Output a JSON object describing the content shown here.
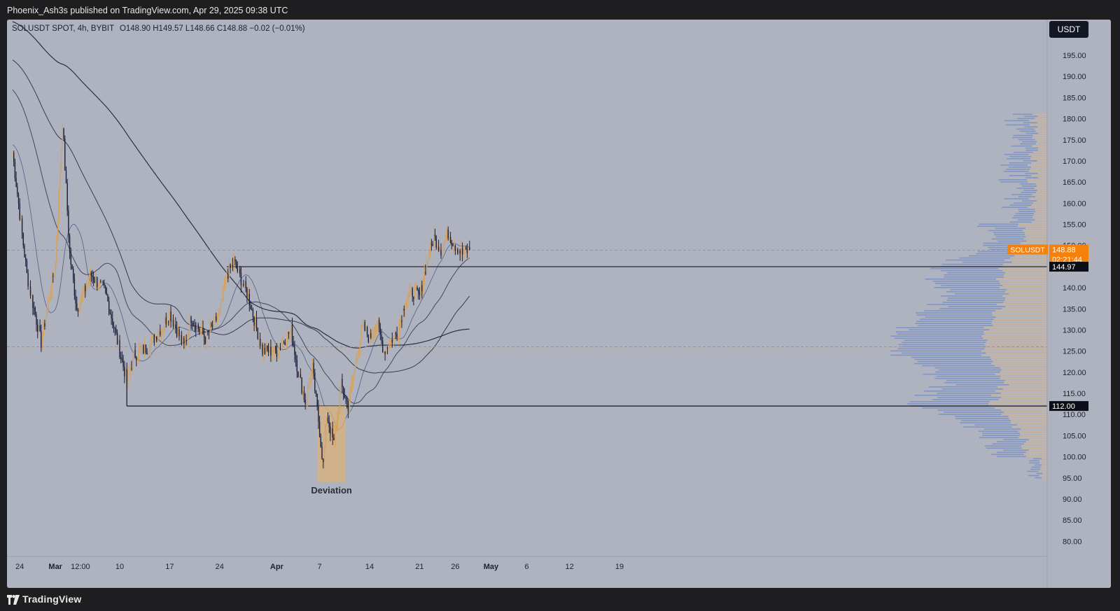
{
  "header": {
    "publisher_text": "Phoenix_Ash3s published on TradingView.com, Apr 29, 2025 09:38 UTC"
  },
  "footer": {
    "brand": "TradingView"
  },
  "legend": {
    "symbol": "SOLUSDT SPOT, 4h, BYBIT",
    "ohlc": "O148.90  H149.57  L148.66  C148.88  −0.02 (−0.01%)"
  },
  "chart_data": {
    "type": "candlestick",
    "symbol": "SOLUSDT",
    "quote_currency": "USDT",
    "y_ticks": [
      195,
      190,
      185,
      180,
      175,
      170,
      165,
      160,
      155,
      150,
      145,
      140,
      135,
      130,
      125,
      120,
      115,
      110,
      105,
      100,
      95,
      90,
      85,
      80
    ],
    "x_ticks": [
      "24",
      "Mar",
      "12:00",
      "10",
      "17",
      "24",
      "Apr",
      "7",
      "14",
      "21",
      "26",
      "May",
      "6",
      "12",
      "19"
    ],
    "last_price": {
      "label": "SOLUSDT",
      "value": "148.88",
      "countdown": "02:21:44"
    },
    "price_labels": [
      "144.97",
      "112.00"
    ],
    "annotation": "Deviation",
    "price_path": [
      {
        "date": "2025-02-23",
        "p": 172
      },
      {
        "date": "2025-02-25",
        "p": 143
      },
      {
        "date": "2025-02-27",
        "p": 127
      },
      {
        "date": "2025-03-01",
        "p": 146
      },
      {
        "date": "2025-03-02",
        "p": 179
      },
      {
        "date": "2025-03-03",
        "p": 148
      },
      {
        "date": "2025-03-04",
        "p": 135
      },
      {
        "date": "2025-03-06",
        "p": 143
      },
      {
        "date": "2025-03-08",
        "p": 139
      },
      {
        "date": "2025-03-10",
        "p": 125
      },
      {
        "date": "2025-03-11",
        "p": 118
      },
      {
        "date": "2025-03-12",
        "p": 124
      },
      {
        "date": "2025-03-14",
        "p": 126
      },
      {
        "date": "2025-03-16",
        "p": 131
      },
      {
        "date": "2025-03-17",
        "p": 134
      },
      {
        "date": "2025-03-19",
        "p": 126
      },
      {
        "date": "2025-03-20",
        "p": 133
      },
      {
        "date": "2025-03-22",
        "p": 128
      },
      {
        "date": "2025-03-24",
        "p": 134
      },
      {
        "date": "2025-03-25",
        "p": 143
      },
      {
        "date": "2025-03-26",
        "p": 146
      },
      {
        "date": "2025-03-28",
        "p": 138
      },
      {
        "date": "2025-03-30",
        "p": 125
      },
      {
        "date": "2025-04-01",
        "p": 125
      },
      {
        "date": "2025-04-03",
        "p": 130
      },
      {
        "date": "2025-04-04",
        "p": 120
      },
      {
        "date": "2025-04-05",
        "p": 113
      },
      {
        "date": "2025-04-06",
        "p": 121
      },
      {
        "date": "2025-04-07",
        "p": 106
      },
      {
        "date": "2025-04-07T12:00",
        "p": 98
      },
      {
        "date": "2025-04-08",
        "p": 110
      },
      {
        "date": "2025-04-09",
        "p": 103
      },
      {
        "date": "2025-04-10",
        "p": 117
      },
      {
        "date": "2025-04-11",
        "p": 112
      },
      {
        "date": "2025-04-12",
        "p": 122
      },
      {
        "date": "2025-04-13",
        "p": 131
      },
      {
        "date": "2025-04-14",
        "p": 128
      },
      {
        "date": "2025-04-15",
        "p": 132
      },
      {
        "date": "2025-04-16",
        "p": 125
      },
      {
        "date": "2025-04-18",
        "p": 130
      },
      {
        "date": "2025-04-19",
        "p": 137
      },
      {
        "date": "2025-04-20",
        "p": 139
      },
      {
        "date": "2025-04-21",
        "p": 138
      },
      {
        "date": "2025-04-22",
        "p": 146
      },
      {
        "date": "2025-04-23",
        "p": 152
      },
      {
        "date": "2025-04-24",
        "p": 149
      },
      {
        "date": "2025-04-25",
        "p": 153
      },
      {
        "date": "2025-04-26",
        "p": 150
      },
      {
        "date": "2025-04-27",
        "p": 148
      },
      {
        "date": "2025-04-28",
        "p": 149
      }
    ],
    "horizontal_lines": [
      144.97,
      112.0
    ],
    "dashed_lines": [
      148.88,
      126.0
    ]
  }
}
